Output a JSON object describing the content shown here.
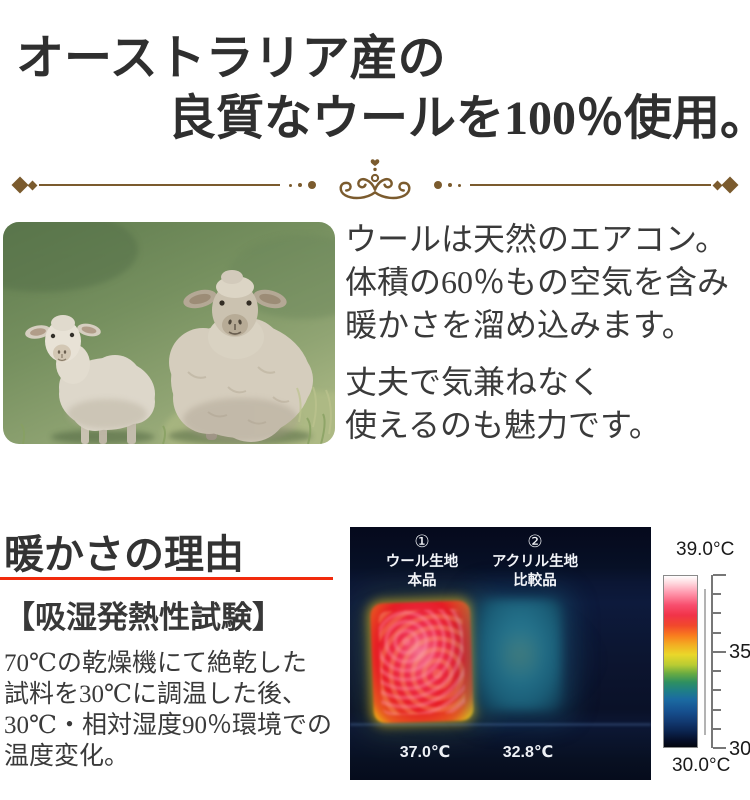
{
  "title": {
    "line1": "オーストラリア産の",
    "line2": "良質なウールを100％使用。"
  },
  "intro": {
    "para1": [
      "ウールは天然のエアコン。",
      "体積の60％もの空気を含み",
      "暖かさを溜め込みます。"
    ],
    "para2": [
      "丈夫で気兼ねなく",
      "使えるのも魅力です。"
    ]
  },
  "reason": {
    "heading": "暖かさの理由",
    "subheading": "【吸湿発熱性試験】",
    "body": [
      "70℃の乾燥機にて絶乾した",
      "試料を30℃に調温した後、",
      "30℃・相対湿度90％環境での",
      "温度変化。"
    ]
  },
  "thermal": {
    "sample1": {
      "index": "①",
      "material": "ウール生地",
      "kind": "本品",
      "temp": "37.0℃"
    },
    "sample2": {
      "index": "②",
      "material": "アクリル生地",
      "kind": "比較品",
      "temp": "32.8℃"
    },
    "scale": {
      "max_label": "39.0°C",
      "min_label": "30.0°C",
      "tick35": "35",
      "tick30": "30"
    }
  },
  "colors": {
    "divider_brown": "#7b5b2e",
    "underline_red": "#f12a0c",
    "text_dark": "#333333",
    "thermal_background": "#0a1028",
    "wool_hot": "#ee1c24",
    "acrylic_cool": "#1f6a84"
  },
  "chart_data": {
    "type": "heatmap",
    "title": "吸湿発熱性試験",
    "samples": [
      {
        "id": "①",
        "label": "ウール生地 本品",
        "temperature_c": 37.0
      },
      {
        "id": "②",
        "label": "アクリル生地 比較品",
        "temperature_c": 32.8
      }
    ],
    "color_scale": {
      "min_c": 30.0,
      "max_c": 39.0,
      "labeled_ticks": [
        35,
        30
      ],
      "tick_step_c": 1
    }
  }
}
